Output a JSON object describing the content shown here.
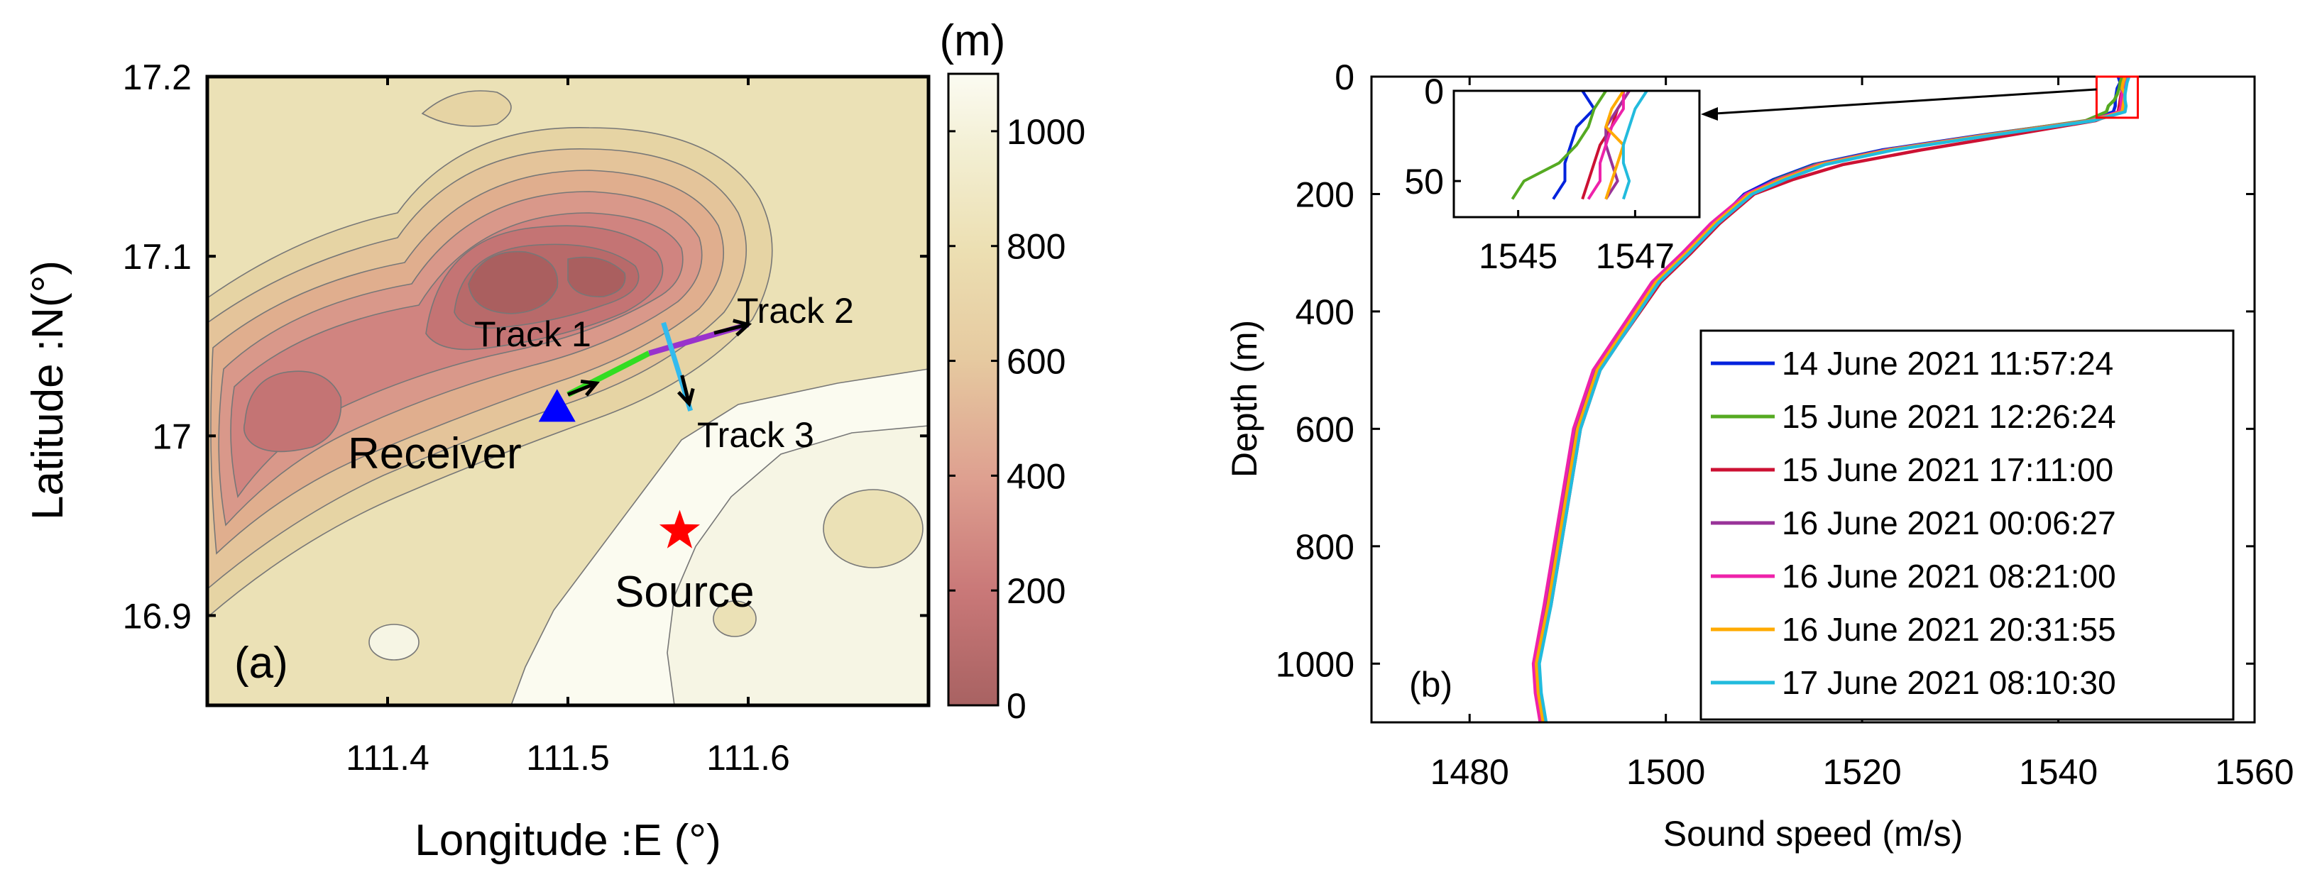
{
  "figure": {
    "panel_a_label": "(a)",
    "panel_b_label": "(b)"
  },
  "map": {
    "xlabel": "Longitude :E (°)",
    "ylabel": "Latitude :N(°)",
    "xticks": [
      "111.4",
      "111.5",
      "111.6"
    ],
    "xtick_values": [
      111.4,
      111.5,
      111.6
    ],
    "yticks": [
      "17.2",
      "17.1",
      "17",
      "16.9"
    ],
    "ytick_values": [
      17.2,
      17.1,
      17.0,
      16.9
    ],
    "xlim": [
      111.3,
      111.7
    ],
    "ylim": [
      16.85,
      17.2
    ],
    "labels": {
      "receiver": "Receiver",
      "source": "Source",
      "track1": "Track 1",
      "track2": "Track 2",
      "track3": "Track 3"
    },
    "receiver": {
      "lon": 111.494,
      "lat": 17.015
    },
    "source": {
      "lon": 111.562,
      "lat": 16.947
    },
    "tracks": {
      "track1": {
        "color": "#33dd22",
        "from": [
          111.5,
          17.023
        ],
        "to": [
          111.545,
          17.046
        ]
      },
      "track2": {
        "color": "#9933cc",
        "from": [
          111.545,
          17.046
        ],
        "to": [
          111.6,
          17.062
        ]
      },
      "track3": {
        "color": "#33bbee",
        "from": [
          111.553,
          17.063
        ],
        "to": [
          111.568,
          17.014
        ]
      }
    },
    "colors": {
      "receiver": "#0000ff",
      "source": "#ff0000"
    }
  },
  "colorbar": {
    "unit": "(m)",
    "ticks": [
      "1000",
      "800",
      "600",
      "400",
      "200",
      "0"
    ],
    "tick_values": [
      1000,
      800,
      600,
      400,
      200,
      0
    ],
    "range": [
      0,
      1100
    ]
  },
  "inset": {
    "xticks": [
      "1545",
      "1547"
    ],
    "xtick_values": [
      1545,
      1547
    ],
    "yticks": [
      "0",
      "50"
    ],
    "ytick_values": [
      0,
      50
    ],
    "xlim": [
      1543.9,
      1548.1
    ],
    "ylim": [
      0,
      70
    ]
  },
  "chart_data": {
    "type": "line",
    "title": "",
    "xlabel": "Sound speed (m/s)",
    "ylabel": "Depth (m)",
    "xlim": [
      1470,
      1560
    ],
    "ylim": [
      0,
      1100
    ],
    "y_reversed": true,
    "xticks": [
      1480,
      1500,
      1520,
      1540,
      1560
    ],
    "yticks": [
      0,
      200,
      400,
      600,
      800,
      1000
    ],
    "depth": [
      0,
      10,
      20,
      30,
      40,
      50,
      60,
      75,
      100,
      125,
      150,
      175,
      200,
      250,
      300,
      350,
      400,
      450,
      500,
      600,
      700,
      800,
      900,
      1000,
      1050,
      1100
    ],
    "series": [
      {
        "name": "14 June 2021 11:57:24",
        "color": "#0022dd",
        "values": [
          1546.1,
          1546.3,
          1546.0,
          1545.9,
          1545.8,
          1545.8,
          1545.6,
          1543.0,
          1532.0,
          1522.0,
          1515.0,
          1511.0,
          1508.0,
          1505.0,
          1502.0,
          1499.0,
          1497.0,
          1495.0,
          1493.0,
          1491.0,
          1490.0,
          1489.0,
          1488.0,
          1486.8,
          1487.0,
          1487.5
        ]
      },
      {
        "name": "15 June 2021 12:26:24",
        "color": "#55aa22",
        "values": [
          1546.5,
          1546.3,
          1546.2,
          1546.0,
          1545.7,
          1545.1,
          1544.9,
          1542.8,
          1532.3,
          1522.4,
          1515.3,
          1511.3,
          1508.4,
          1505.2,
          1502.3,
          1499.2,
          1497.2,
          1495.2,
          1493.2,
          1491.2,
          1490.2,
          1489.2,
          1488.2,
          1486.9,
          1487.1,
          1487.6
        ]
      },
      {
        "name": "15 June 2021 17:11:00",
        "color": "#cc1133",
        "values": [
          1546.9,
          1546.7,
          1546.6,
          1546.4,
          1546.3,
          1546.2,
          1546.1,
          1543.8,
          1535.0,
          1526.0,
          1518.0,
          1513.0,
          1509.0,
          1505.5,
          1502.6,
          1499.5,
          1497.4,
          1495.3,
          1493.3,
          1491.3,
          1490.3,
          1489.3,
          1488.3,
          1487.0,
          1487.2,
          1487.7
        ]
      },
      {
        "name": "16 June 2021 00:06:27",
        "color": "#993399",
        "values": [
          1546.9,
          1546.7,
          1546.5,
          1546.5,
          1546.6,
          1546.7,
          1546.5,
          1543.5,
          1533.0,
          1523.0,
          1516.0,
          1512.0,
          1508.6,
          1505.0,
          1502.0,
          1498.8,
          1496.8,
          1494.8,
          1492.8,
          1490.8,
          1489.8,
          1488.8,
          1487.8,
          1486.6,
          1486.8,
          1487.3
        ]
      },
      {
        "name": "16 June 2021 08:21:00",
        "color": "#ee22aa",
        "values": [
          1546.8,
          1546.8,
          1546.6,
          1546.5,
          1546.4,
          1546.4,
          1546.2,
          1543.2,
          1532.5,
          1522.5,
          1515.5,
          1511.5,
          1508.2,
          1504.6,
          1501.7,
          1498.6,
          1496.6,
          1494.6,
          1492.6,
          1490.6,
          1489.6,
          1488.6,
          1487.6,
          1486.5,
          1486.7,
          1487.2
        ]
      },
      {
        "name": "16 June 2021 20:31:55",
        "color": "#ffaa00",
        "values": [
          1546.8,
          1546.6,
          1546.5,
          1546.8,
          1546.7,
          1546.6,
          1546.5,
          1543.4,
          1532.8,
          1522.8,
          1515.8,
          1511.8,
          1508.5,
          1505.0,
          1502.1,
          1499.0,
          1497.0,
          1495.0,
          1493.0,
          1491.0,
          1490.0,
          1489.0,
          1488.0,
          1486.8,
          1487.0,
          1487.5
        ]
      },
      {
        "name": "17 June 2021 08:10:30",
        "color": "#22bbdd",
        "values": [
          1547.2,
          1547.0,
          1546.9,
          1546.8,
          1546.8,
          1546.9,
          1546.8,
          1543.6,
          1533.2,
          1523.2,
          1516.2,
          1512.2,
          1508.8,
          1505.3,
          1502.4,
          1499.3,
          1497.3,
          1495.3,
          1493.3,
          1491.3,
          1490.3,
          1489.3,
          1488.3,
          1487.1,
          1487.3,
          1487.8
        ]
      }
    ]
  }
}
